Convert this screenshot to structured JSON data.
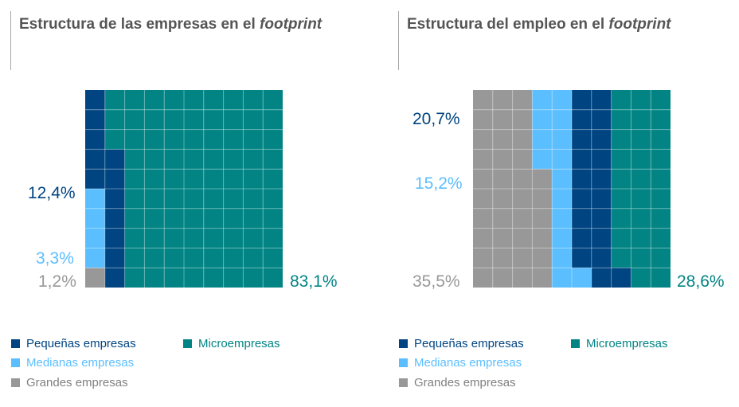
{
  "colors": {
    "pequenas": "#004481",
    "medianas": "#5BBEFF",
    "grandes": "#989898",
    "micro": "#028484",
    "title": "#555555"
  },
  "chart_data": [
    {
      "type": "waffle",
      "title_main": "Estructura de las empresas en el ",
      "title_italic": "footprint",
      "series": [
        {
          "name": "Pequeñas empresas",
          "value": 12.4,
          "label": "12,4%",
          "color": "#004481"
        },
        {
          "name": "Medianas empresas",
          "value": 3.3,
          "label": "3,3%",
          "color": "#5BBEFF"
        },
        {
          "name": "Grandes empresas",
          "value": 1.2,
          "label": "1,2%",
          "color": "#989898"
        },
        {
          "name": "Microempresas",
          "value": 83.1,
          "label": "83,1%",
          "color": "#028484"
        }
      ]
    },
    {
      "type": "waffle",
      "title_main": "Estructura del empleo en el ",
      "title_italic": "footprint",
      "series": [
        {
          "name": "Pequeñas empresas",
          "value": 20.7,
          "label": "20,7%",
          "color": "#004481"
        },
        {
          "name": "Medianas empresas",
          "value": 15.2,
          "label": "15,2%",
          "color": "#5BBEFF"
        },
        {
          "name": "Grandes empresas",
          "value": 35.5,
          "label": "35,5%",
          "color": "#989898"
        },
        {
          "name": "Microempresas",
          "value": 28.6,
          "label": "28,6%",
          "color": "#028484"
        }
      ]
    }
  ]
}
